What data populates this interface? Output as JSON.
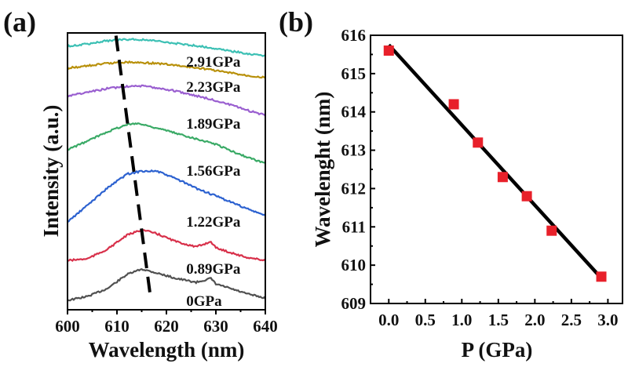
{
  "chart_data": [
    {
      "panel_label": "(a)",
      "type": "line",
      "xlabel": "Wavelength (nm)",
      "ylabel": "Intensity (a.u.)",
      "xlim": [
        600,
        640
      ],
      "xticks": [
        600,
        610,
        620,
        630,
        640
      ],
      "ylim": [
        0,
        100
      ],
      "y_ticks_shown": false,
      "grid": false,
      "series": [
        {
          "name": "0GPa",
          "color": "#505050",
          "label_at": [
            624,
            3.4
          ],
          "x": [
            600,
            604,
            608,
            612,
            615,
            618,
            622,
            626,
            629,
            630,
            632,
            636,
            640
          ],
          "y": [
            3.4,
            4.8,
            7.6,
            12.7,
            14.7,
            13.3,
            11.3,
            9.9,
            11.3,
            9.3,
            8.2,
            5.9,
            4.2
          ]
        },
        {
          "name": "0.89GPa",
          "color": "#d8304a",
          "label_at": [
            624,
            15
          ],
          "x": [
            600,
            604,
            608,
            612,
            615,
            618,
            622,
            626,
            629,
            630,
            632,
            636,
            640
          ],
          "y": [
            17.8,
            18.4,
            21.8,
            26.9,
            28.9,
            27.5,
            24.6,
            22.7,
            24.6,
            22.4,
            21.2,
            19.0,
            17.8
          ]
        },
        {
          "name": "1.22GPa",
          "color": "#2d62d0",
          "label_at": [
            624,
            32
          ],
          "x": [
            600,
            604,
            608,
            612,
            615,
            618,
            622,
            626,
            630,
            634,
            637,
            640
          ],
          "y": [
            31.7,
            37.7,
            43.9,
            49.0,
            50.1,
            50.1,
            47.3,
            43.9,
            41.1,
            38.2,
            36.0,
            34.0
          ]
        },
        {
          "name": "1.56GPa",
          "color": "#3aaa66",
          "label_at": [
            624,
            50.4
          ],
          "x": [
            600,
            604,
            608,
            612,
            614,
            618,
            622,
            626,
            630,
            634,
            637,
            640
          ],
          "y": [
            57.8,
            60.9,
            64.3,
            66.9,
            67.4,
            65.7,
            63.7,
            61.8,
            59.8,
            56.7,
            54.7,
            52.9
          ]
        },
        {
          "name": "1.89GPa",
          "color": "#9a5fd0",
          "label_at": [
            624,
            67.4
          ],
          "x": [
            600,
            604,
            608,
            612,
            614,
            618,
            622,
            626,
            630,
            634,
            637,
            640
          ],
          "y": [
            77.3,
            78.5,
            79.9,
            80.7,
            81.0,
            80.2,
            79.0,
            77.3,
            75.6,
            73.4,
            71.7,
            70.3
          ]
        },
        {
          "name": "2.23GPa",
          "color": "#b8900a",
          "label_at": [
            624,
            80.7
          ],
          "x": [
            600,
            604,
            608,
            612,
            616,
            620,
            624,
            628,
            632,
            636,
            640
          ],
          "y": [
            87.3,
            88.1,
            89.0,
            89.5,
            89.2,
            88.7,
            87.8,
            87.0,
            85.8,
            84.7,
            83.9
          ]
        },
        {
          "name": "2.91GPa",
          "color": "#3cc0b4",
          "label_at": [
            624,
            89.8
          ],
          "x": [
            600,
            604,
            608,
            612,
            616,
            620,
            624,
            628,
            632,
            636,
            640
          ],
          "y": [
            95.2,
            96.0,
            97.2,
            97.7,
            97.5,
            96.6,
            95.8,
            94.9,
            93.8,
            92.6,
            91.8
          ]
        }
      ],
      "peak_shift_guide": {
        "style": "dashed",
        "color": "#000000",
        "from": [
          609.8,
          99
        ],
        "to": [
          616.8,
          4.3
        ]
      }
    },
    {
      "panel_label": "(b)",
      "type": "scatter",
      "xlabel": "P (GPa)",
      "ylabel": "Wavelenght (nm)",
      "xlim": [
        -0.25,
        3.2
      ],
      "ylim": [
        609,
        616
      ],
      "xticks": [
        0.0,
        0.5,
        1.0,
        1.5,
        2.0,
        2.5,
        3.0
      ],
      "xtick_labels": [
        "0.0",
        "0.5",
        "1.0",
        "1.5",
        "2.0",
        "2.5",
        "3.0"
      ],
      "yticks": [
        609,
        610,
        611,
        612,
        613,
        614,
        615,
        616
      ],
      "grid": false,
      "marker": "square",
      "marker_color": "#e8202a",
      "points": {
        "x": [
          0,
          0.89,
          1.22,
          1.56,
          1.89,
          2.23,
          2.91
        ],
        "y": [
          615.6,
          614.2,
          613.2,
          612.3,
          611.8,
          610.9,
          609.7
        ]
      },
      "fit_line": {
        "color": "#000000",
        "from": [
          0,
          615.75
        ],
        "to": [
          2.93,
          609.62
        ]
      }
    }
  ]
}
